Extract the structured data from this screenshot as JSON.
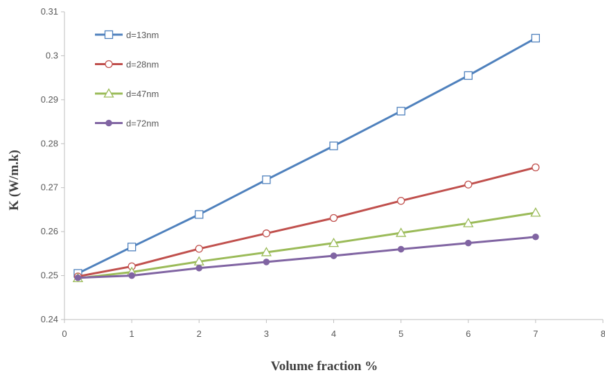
{
  "chart_data": {
    "type": "line",
    "xlabel": "Volume fraction %",
    "ylabel": "K (W/m.k)",
    "xlim": [
      0,
      8
    ],
    "ylim": [
      0.24,
      0.31
    ],
    "xticks": [
      0,
      1,
      2,
      3,
      4,
      5,
      6,
      7,
      8
    ],
    "yticks": [
      0.24,
      0.25,
      0.26,
      0.27,
      0.28,
      0.29,
      0.3,
      0.31
    ],
    "x": [
      0.2,
      1,
      2,
      3,
      4,
      5,
      6,
      7
    ],
    "grid": false,
    "legend_position": "top-left",
    "series": [
      {
        "name": "d=13nm",
        "color": "#4f81bd",
        "marker": "square",
        "values": [
          0.2505,
          0.2565,
          0.2639,
          0.2718,
          0.2795,
          0.2874,
          0.2955,
          0.304
        ]
      },
      {
        "name": "d=28nm",
        "color": "#c0504d",
        "marker": "circle",
        "values": [
          0.2498,
          0.2521,
          0.2561,
          0.2596,
          0.2631,
          0.267,
          0.2707,
          0.2746
        ]
      },
      {
        "name": "d=47nm",
        "color": "#9bbb59",
        "marker": "triangle",
        "values": [
          0.2494,
          0.2508,
          0.2532,
          0.2553,
          0.2574,
          0.2597,
          0.2619,
          0.2643
        ]
      },
      {
        "name": "d=72nm",
        "color": "#8064a2",
        "marker": "filled-circle",
        "values": [
          0.2495,
          0.25,
          0.2517,
          0.2531,
          0.2545,
          0.256,
          0.2574,
          0.2588
        ]
      }
    ]
  }
}
